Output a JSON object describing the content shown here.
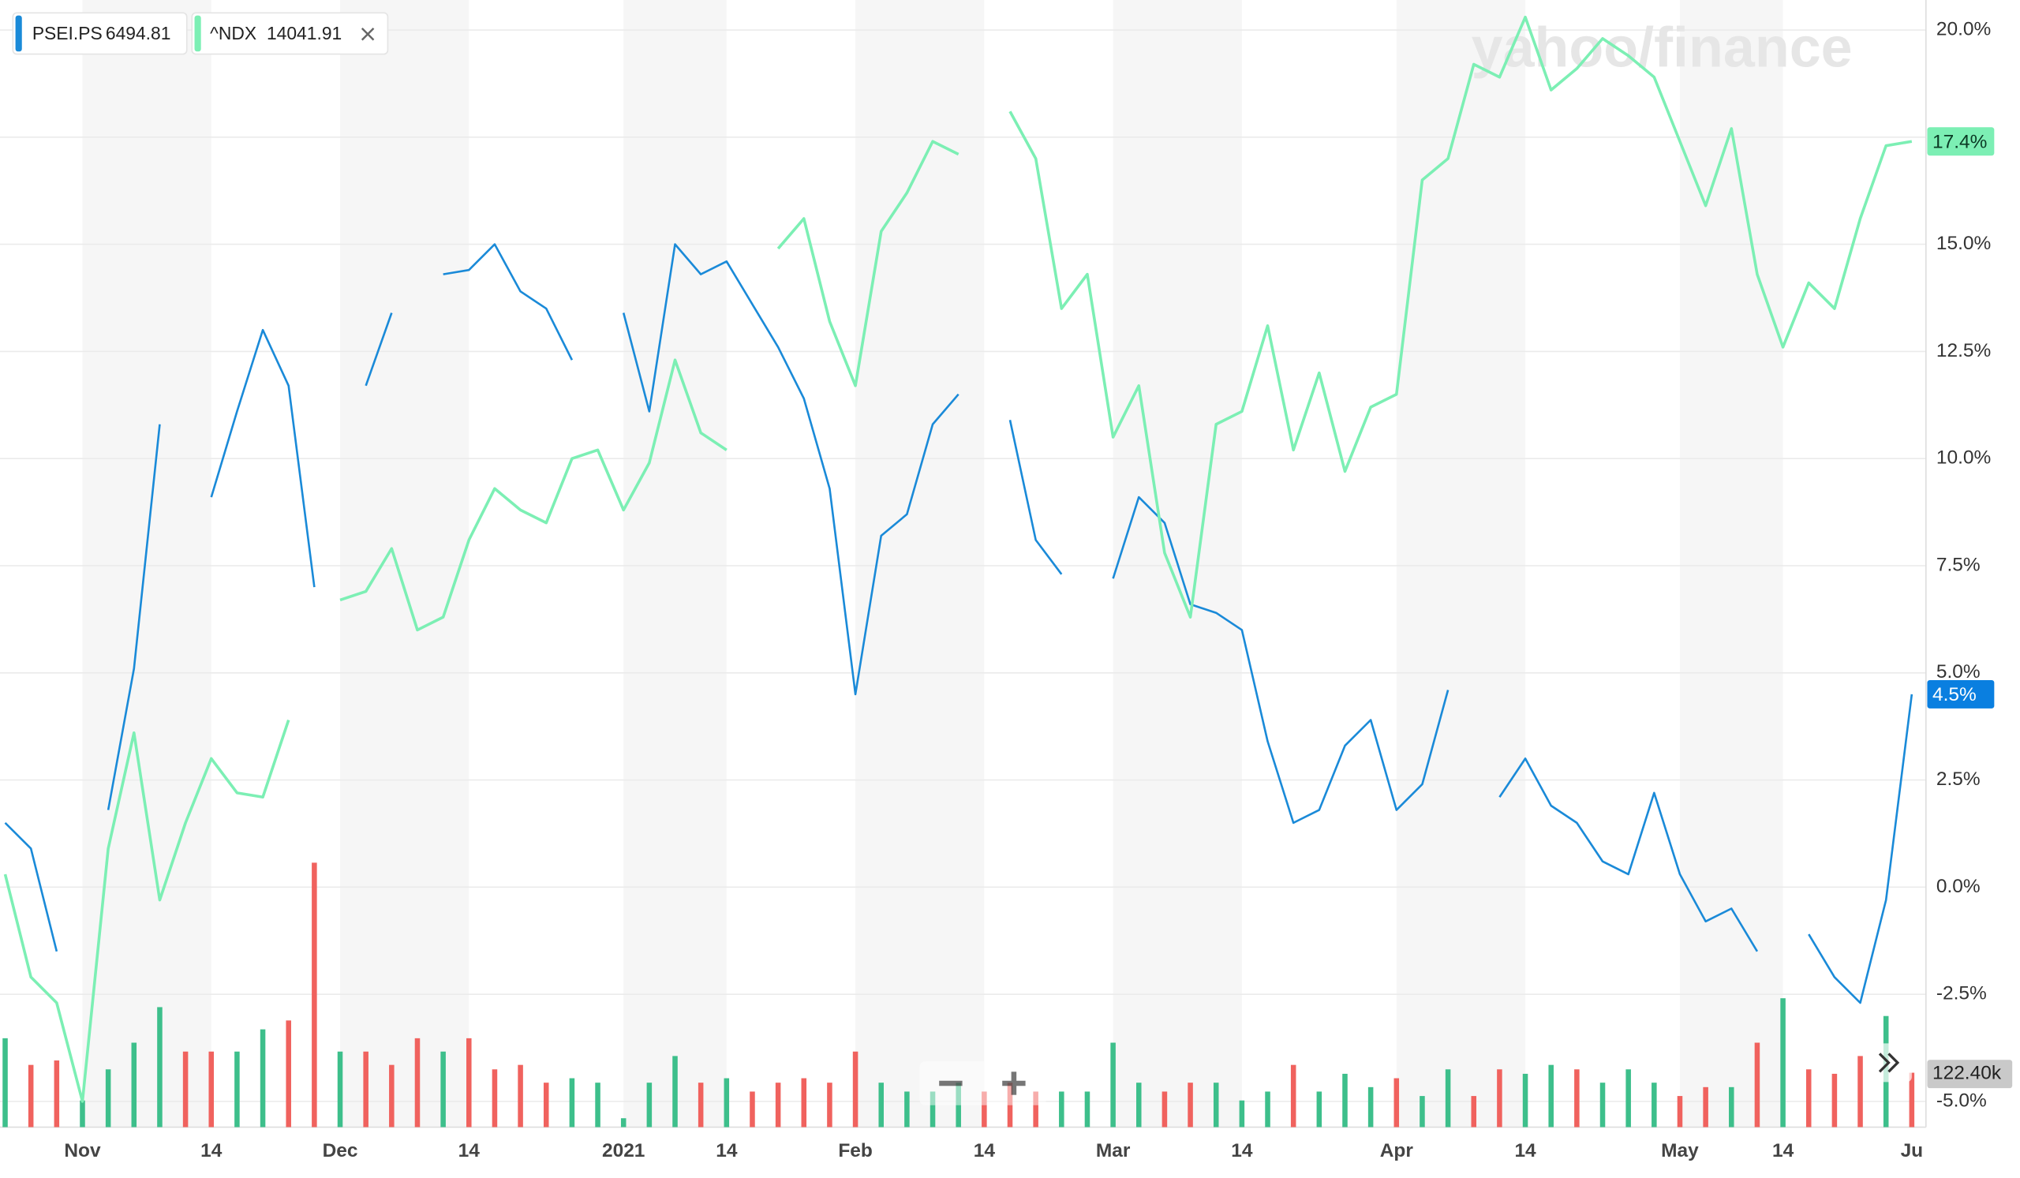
{
  "chart_data": {
    "type": "line",
    "watermark": "yahoo/finance",
    "categories": [
      null,
      null,
      null,
      "Nov",
      null,
      null,
      null,
      null,
      "14",
      null,
      null,
      null,
      null,
      "Dec",
      null,
      null,
      null,
      null,
      "14",
      null,
      null,
      null,
      null,
      null,
      "2021",
      null,
      null,
      null,
      "14",
      null,
      null,
      null,
      null,
      "Feb",
      null,
      null,
      null,
      null,
      "14",
      null,
      null,
      null,
      null,
      "Mar",
      null,
      null,
      null,
      null,
      "14",
      null,
      null,
      null,
      null,
      null,
      "Apr",
      null,
      null,
      null,
      null,
      "14",
      null,
      null,
      null,
      null,
      null,
      "May",
      null,
      null,
      null,
      "14",
      null,
      null,
      null,
      null,
      "Ju"
    ],
    "series": [
      {
        "name": "PSEI.PS",
        "last_price": "6494.81",
        "end_label": "4.5%",
        "color": "#1a8ad8",
        "label_color": "#0a7fe0",
        "values": [
          1.5,
          0.9,
          -1.5,
          null,
          1.8,
          5.1,
          10.8,
          null,
          9.1,
          11.1,
          13.0,
          11.7,
          7.0,
          null,
          11.7,
          13.4,
          null,
          14.3,
          14.4,
          15.0,
          13.9,
          13.5,
          12.3,
          null,
          13.4,
          11.1,
          15.0,
          14.3,
          14.6,
          13.6,
          12.6,
          11.4,
          9.3,
          4.5,
          8.2,
          8.7,
          10.8,
          11.5,
          null,
          10.9,
          8.1,
          7.3,
          null,
          7.2,
          9.1,
          8.5,
          6.6,
          6.4,
          6.0,
          3.4,
          1.5,
          1.8,
          3.3,
          3.9,
          1.8,
          2.4,
          4.6,
          null,
          2.1,
          3.0,
          1.9,
          1.5,
          0.6,
          0.3,
          2.2,
          0.3,
          -0.8,
          -0.5,
          -1.5,
          null,
          -1.1,
          -2.1,
          -2.7,
          -0.3,
          4.5
        ]
      },
      {
        "name": "^NDX",
        "last_price": "14041.91",
        "end_label": "17.4%",
        "color": "#7cefb4",
        "label_color": "#7cefb4",
        "values": [
          0.3,
          -2.1,
          -2.7,
          -5.0,
          0.9,
          3.6,
          -0.3,
          1.5,
          3.0,
          2.2,
          2.1,
          3.9,
          null,
          6.7,
          6.9,
          7.9,
          6.0,
          6.3,
          8.1,
          9.3,
          8.8,
          8.5,
          10.0,
          10.2,
          8.8,
          9.9,
          12.3,
          10.6,
          10.2,
          null,
          14.9,
          15.6,
          13.2,
          11.7,
          15.3,
          16.2,
          17.4,
          17.1,
          null,
          18.1,
          17.0,
          13.5,
          14.3,
          10.5,
          11.7,
          7.8,
          6.3,
          10.8,
          11.1,
          13.1,
          10.2,
          12.0,
          9.7,
          11.2,
          11.5,
          16.5,
          17.0,
          19.2,
          18.9,
          20.3,
          18.6,
          19.1,
          19.8,
          19.4,
          18.9,
          17.4,
          15.9,
          17.7,
          14.3,
          12.6,
          14.1,
          13.5,
          15.6,
          17.3,
          17.4
        ]
      }
    ],
    "volume": {
      "volume_label": "122.40k",
      "values": [
        200,
        140,
        150,
        60,
        130,
        190,
        270,
        170,
        170,
        170,
        220,
        240,
        595,
        170,
        170,
        140,
        200,
        170,
        200,
        130,
        140,
        100,
        110,
        100,
        20,
        100,
        160,
        100,
        110,
        80,
        100,
        110,
        100,
        170,
        100,
        80,
        80,
        100,
        80,
        100,
        80,
        80,
        80,
        190,
        100,
        80,
        100,
        100,
        60,
        80,
        140,
        80,
        120,
        90,
        110,
        70,
        130,
        70,
        130,
        120,
        140,
        130,
        100,
        130,
        100,
        70,
        90,
        90,
        190,
        290,
        130,
        120,
        160,
        250,
        122.4
      ],
      "colors": [
        "#3dbf8b",
        "#f0625e",
        "#f0625e",
        "#3dbf8b",
        "#3dbf8b",
        "#3dbf8b",
        "#3dbf8b",
        "#f0625e",
        "#f0625e",
        "#3dbf8b",
        "#3dbf8b",
        "#f0625e",
        "#f0625e",
        "#3dbf8b",
        "#f0625e",
        "#f0625e",
        "#f0625e",
        "#3dbf8b",
        "#f0625e",
        "#f0625e",
        "#f0625e",
        "#f0625e",
        "#3dbf8b",
        "#3dbf8b",
        "#3dbf8b",
        "#3dbf8b",
        "#3dbf8b",
        "#f0625e",
        "#3dbf8b",
        "#f0625e",
        "#f0625e",
        "#f0625e",
        "#f0625e",
        "#f0625e",
        "#3dbf8b",
        "#3dbf8b",
        "#3dbf8b",
        "#3dbf8b",
        "#f0625e",
        "#f0625e",
        "#f0625e",
        "#3dbf8b",
        "#3dbf8b",
        "#3dbf8b",
        "#3dbf8b",
        "#f0625e",
        "#f0625e",
        "#3dbf8b",
        "#3dbf8b",
        "#3dbf8b",
        "#f0625e",
        "#3dbf8b",
        "#3dbf8b",
        "#3dbf8b",
        "#f0625e",
        "#3dbf8b",
        "#3dbf8b",
        "#f0625e",
        "#f0625e",
        "#3dbf8b",
        "#3dbf8b",
        "#f0625e",
        "#3dbf8b",
        "#3dbf8b",
        "#3dbf8b",
        "#f0625e",
        "#f0625e",
        "#3dbf8b",
        "#f0625e",
        "#3dbf8b",
        "#f0625e",
        "#f0625e",
        "#f0625e",
        "#3dbf8b",
        "#f0625e"
      ]
    },
    "ylim": [
      -5.6,
      20.7
    ],
    "yticks": [
      {
        "value": -5,
        "label": "-5.0%"
      },
      {
        "value": -2.5,
        "label": "-2.5%"
      },
      {
        "value": 0,
        "label": "0.0%"
      },
      {
        "value": 2.5,
        "label": "2.5%"
      },
      {
        "value": 5,
        "label": "5.0%"
      },
      {
        "value": 7.5,
        "label": "7.5%"
      },
      {
        "value": 10,
        "label": "10.0%"
      },
      {
        "value": 12.5,
        "label": "12.5%"
      },
      {
        "value": 15,
        "label": "15.0%"
      },
      {
        "value": 17.5,
        "label": "17.5%"
      },
      {
        "value": 20,
        "label": "20.0%"
      }
    ],
    "grid": true
  }
}
